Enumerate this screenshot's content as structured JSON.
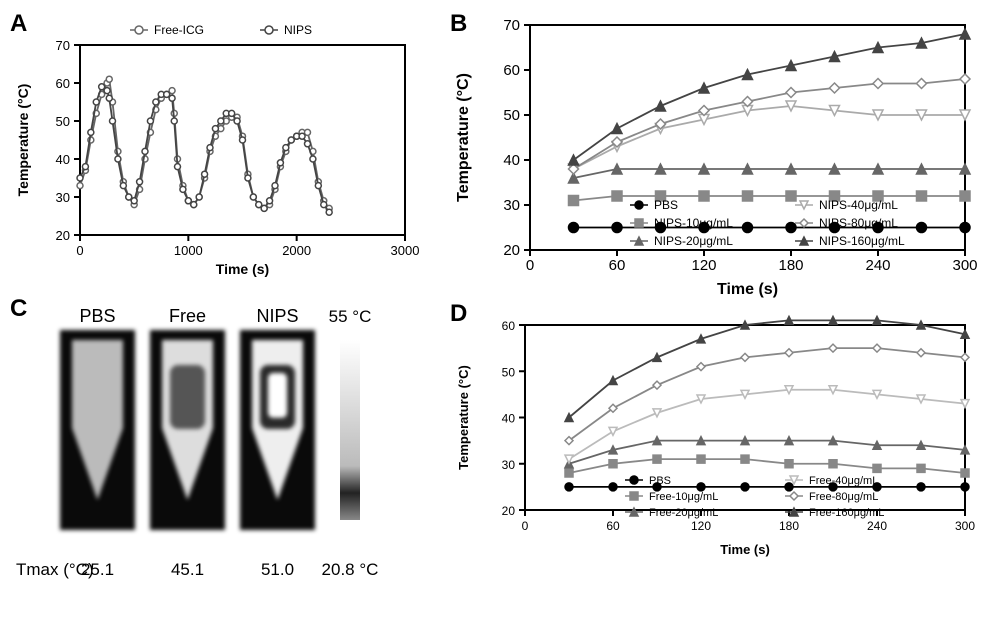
{
  "panelA": {
    "label": "A",
    "type": "line",
    "title": "",
    "xlabel": "Time (s)",
    "ylabel": "Temperature (°C)",
    "label_fontsize": 14,
    "xlim": [
      0,
      3000
    ],
    "ylim": [
      20,
      70
    ],
    "xtick_step": 1000,
    "ytick_step": 10,
    "background_color": "#ffffff",
    "axis_color": "#000000",
    "legend_position": "top",
    "series": [
      {
        "name": "Free-ICG",
        "marker": "circle",
        "color": "#666666",
        "x": [
          0,
          50,
          100,
          150,
          200,
          250,
          270,
          300,
          350,
          400,
          450,
          500,
          550,
          600,
          650,
          700,
          750,
          800,
          850,
          870,
          900,
          950,
          1000,
          1050,
          1100,
          1150,
          1200,
          1250,
          1300,
          1350,
          1400,
          1450,
          1500,
          1550,
          1600,
          1650,
          1700,
          1750,
          1800,
          1850,
          1900,
          1950,
          2000,
          2050,
          2100,
          2150,
          2200,
          2250,
          2300
        ],
        "y": [
          33,
          37,
          45,
          52,
          57,
          60,
          61,
          55,
          42,
          34,
          30,
          28,
          32,
          40,
          47,
          53,
          56,
          57,
          58,
          52,
          40,
          33,
          29,
          28,
          30,
          35,
          42,
          46,
          48,
          50,
          51,
          51,
          46,
          36,
          30,
          28,
          27,
          28,
          32,
          38,
          42,
          45,
          46,
          47,
          47,
          42,
          34,
          29,
          27
        ]
      },
      {
        "name": "NIPS",
        "marker": "circle",
        "color": "#444444",
        "x": [
          0,
          50,
          100,
          150,
          200,
          250,
          270,
          300,
          350,
          400,
          450,
          500,
          550,
          600,
          650,
          700,
          750,
          800,
          850,
          870,
          900,
          950,
          1000,
          1050,
          1100,
          1150,
          1200,
          1250,
          1300,
          1350,
          1400,
          1450,
          1500,
          1550,
          1600,
          1650,
          1700,
          1750,
          1800,
          1850,
          1900,
          1950,
          2000,
          2050,
          2100,
          2150,
          2200,
          2250,
          2300
        ],
        "y": [
          35,
          38,
          47,
          55,
          59,
          58,
          56,
          50,
          40,
          33,
          30,
          29,
          34,
          42,
          50,
          55,
          57,
          57,
          56,
          50,
          38,
          32,
          29,
          28,
          30,
          36,
          43,
          48,
          50,
          52,
          52,
          50,
          45,
          35,
          30,
          28,
          27,
          29,
          33,
          39,
          43,
          45,
          46,
          46,
          44,
          40,
          33,
          28,
          26
        ]
      }
    ]
  },
  "panelB": {
    "label": "B",
    "type": "line",
    "xlabel": "Time (s)",
    "ylabel": "Temperature (°C)",
    "label_fontsize": 16,
    "xlim": [
      0,
      300
    ],
    "ylim": [
      20,
      70
    ],
    "xtick_step": 60,
    "ytick_step": 10,
    "background_color": "#ffffff",
    "axis_color": "#000000",
    "legend_position": "bottom-inside",
    "series": [
      {
        "name": "PBS",
        "marker": "circle-filled",
        "color": "#000000",
        "x": [
          30,
          60,
          90,
          120,
          150,
          180,
          210,
          240,
          270,
          300
        ],
        "y": [
          25,
          25,
          25,
          25,
          25,
          25,
          25,
          25,
          25,
          25
        ]
      },
      {
        "name": "NIPS-10μg/mL",
        "marker": "square-filled",
        "color": "#888888",
        "x": [
          30,
          60,
          90,
          120,
          150,
          180,
          210,
          240,
          270,
          300
        ],
        "y": [
          31,
          32,
          32,
          32,
          32,
          32,
          32,
          32,
          32,
          32
        ]
      },
      {
        "name": "NIPS-20μg/mL",
        "marker": "triangle-up-filled",
        "color": "#666666",
        "x": [
          30,
          60,
          90,
          120,
          150,
          180,
          210,
          240,
          270,
          300
        ],
        "y": [
          36,
          38,
          38,
          38,
          38,
          38,
          38,
          38,
          38,
          38
        ]
      },
      {
        "name": "NIPS-40μg/mL",
        "marker": "triangle-down",
        "color": "#aaaaaa",
        "x": [
          30,
          60,
          90,
          120,
          150,
          180,
          210,
          240,
          270,
          300
        ],
        "y": [
          38,
          43,
          47,
          49,
          51,
          52,
          51,
          50,
          50,
          50
        ]
      },
      {
        "name": "NIPS-80μg/mL",
        "marker": "diamond",
        "color": "#888888",
        "x": [
          30,
          60,
          90,
          120,
          150,
          180,
          210,
          240,
          270,
          300
        ],
        "y": [
          38,
          44,
          48,
          51,
          53,
          55,
          56,
          57,
          57,
          58
        ]
      },
      {
        "name": "NIPS-160μg/mL",
        "marker": "triangle-up-filled",
        "color": "#444444",
        "x": [
          30,
          60,
          90,
          120,
          150,
          180,
          210,
          240,
          270,
          300
        ],
        "y": [
          40,
          47,
          52,
          56,
          59,
          61,
          63,
          65,
          66,
          68
        ]
      }
    ]
  },
  "panelC": {
    "label": "C",
    "type": "thermal-image",
    "columns": [
      "PBS",
      "Free",
      "NIPS"
    ],
    "tmax_label": "Tmax (°C)",
    "tmax_values": [
      "25.1",
      "45.1",
      "51.0"
    ],
    "colorbar_max": "55 °C",
    "colorbar_min": "20.8 °C",
    "tube_colors": {
      "PBS": {
        "outer": "#bbbbbb",
        "bg": "#111111"
      },
      "Free": {
        "outer": "#dddddd",
        "inner": "#555555",
        "bg": "#111111"
      },
      "NIPS": {
        "outer": "#eeeeee",
        "inner": "#ffffff",
        "ring": "#333333",
        "bg": "#111111"
      }
    }
  },
  "panelD": {
    "label": "D",
    "type": "line",
    "xlabel": "Time (s)",
    "ylabel": "Temperature (°C)",
    "label_fontsize": 13,
    "xlim": [
      0,
      300
    ],
    "ylim": [
      20,
      60
    ],
    "xtick_step": 60,
    "ytick_step": 10,
    "background_color": "#ffffff",
    "axis_color": "#000000",
    "legend_position": "bottom-inside",
    "series": [
      {
        "name": "PBS",
        "marker": "circle-filled",
        "color": "#000000",
        "x": [
          30,
          60,
          90,
          120,
          150,
          180,
          210,
          240,
          270,
          300
        ],
        "y": [
          25,
          25,
          25,
          25,
          25,
          25,
          25,
          25,
          25,
          25
        ]
      },
      {
        "name": "Free-10μg/mL",
        "marker": "square-filled",
        "color": "#888888",
        "x": [
          30,
          60,
          90,
          120,
          150,
          180,
          210,
          240,
          270,
          300
        ],
        "y": [
          28,
          30,
          31,
          31,
          31,
          30,
          30,
          29,
          29,
          28
        ]
      },
      {
        "name": "Free-20μg/mL",
        "marker": "triangle-up-filled",
        "color": "#666666",
        "x": [
          30,
          60,
          90,
          120,
          150,
          180,
          210,
          240,
          270,
          300
        ],
        "y": [
          30,
          33,
          35,
          35,
          35,
          35,
          35,
          34,
          34,
          33
        ]
      },
      {
        "name": "Free-40μg/mL",
        "marker": "triangle-down",
        "color": "#bbbbbb",
        "x": [
          30,
          60,
          90,
          120,
          150,
          180,
          210,
          240,
          270,
          300
        ],
        "y": [
          31,
          37,
          41,
          44,
          45,
          46,
          46,
          45,
          44,
          43
        ]
      },
      {
        "name": "Free-80μg/mL",
        "marker": "diamond",
        "color": "#888888",
        "x": [
          30,
          60,
          90,
          120,
          150,
          180,
          210,
          240,
          270,
          300
        ],
        "y": [
          35,
          42,
          47,
          51,
          53,
          54,
          55,
          55,
          54,
          53
        ]
      },
      {
        "name": "Free-160μg/mL",
        "marker": "triangle-up-filled",
        "color": "#444444",
        "x": [
          30,
          60,
          90,
          120,
          150,
          180,
          210,
          240,
          270,
          300
        ],
        "y": [
          40,
          48,
          53,
          57,
          60,
          61,
          61,
          61,
          60,
          58
        ]
      }
    ]
  }
}
